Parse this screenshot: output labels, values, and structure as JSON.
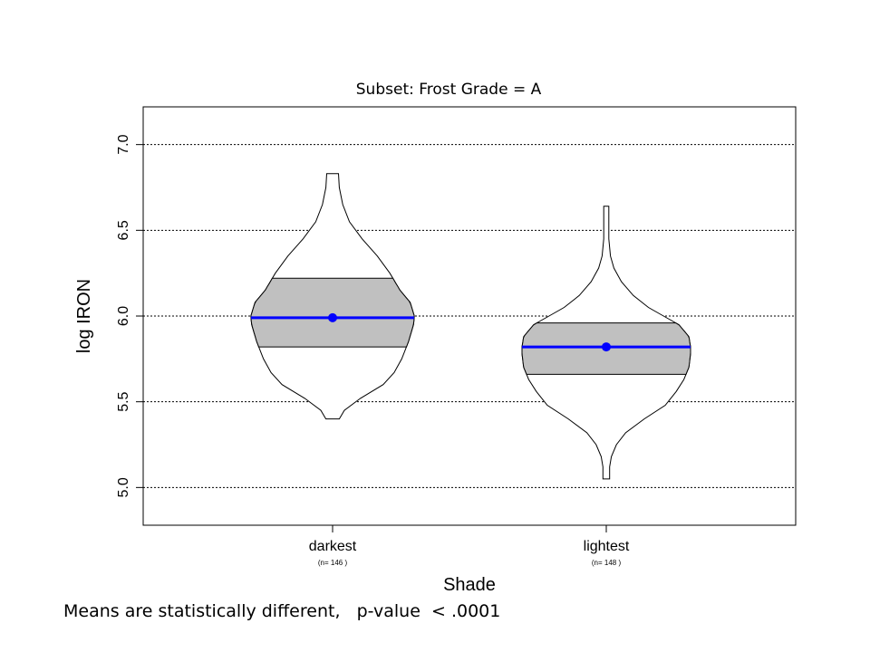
{
  "chart_data": {
    "type": "violin",
    "title": "Subset:  Frost Grade = A",
    "xlabel": "Shade",
    "ylabel": "log IRON",
    "ylim": [
      4.78,
      7.22
    ],
    "yticks": [
      "5.0",
      "5.5",
      "6.0",
      "6.5",
      "7.0"
    ],
    "grid": "horizontal dotted",
    "categories": [
      {
        "label": "darkest",
        "n_label": "(n= 146 )",
        "mean": 5.99,
        "box": [
          5.82,
          6.22
        ],
        "min": 5.4,
        "max": 6.83,
        "profile": [
          [
            5.4,
            0.08
          ],
          [
            5.45,
            0.14
          ],
          [
            5.52,
            0.33
          ],
          [
            5.6,
            0.6
          ],
          [
            5.67,
            0.73
          ],
          [
            5.75,
            0.82
          ],
          [
            5.85,
            0.9
          ],
          [
            5.95,
            0.96
          ],
          [
            6.0,
            0.97
          ],
          [
            6.08,
            0.92
          ],
          [
            6.15,
            0.8
          ],
          [
            6.25,
            0.68
          ],
          [
            6.35,
            0.53
          ],
          [
            6.45,
            0.35
          ],
          [
            6.55,
            0.2
          ],
          [
            6.65,
            0.12
          ],
          [
            6.75,
            0.08
          ],
          [
            6.83,
            0.07
          ]
        ]
      },
      {
        "label": "lightest",
        "n_label": "(n= 148 )",
        "mean": 5.82,
        "box": [
          5.66,
          5.96
        ],
        "min": 5.05,
        "max": 6.64,
        "profile": [
          [
            5.05,
            0.04
          ],
          [
            5.12,
            0.04
          ],
          [
            5.18,
            0.06
          ],
          [
            5.25,
            0.12
          ],
          [
            5.32,
            0.23
          ],
          [
            5.4,
            0.45
          ],
          [
            5.48,
            0.7
          ],
          [
            5.56,
            0.83
          ],
          [
            5.63,
            0.92
          ],
          [
            5.7,
            0.98
          ],
          [
            5.78,
            1.0
          ],
          [
            5.82,
            1.0
          ],
          [
            5.88,
            0.98
          ],
          [
            5.95,
            0.86
          ],
          [
            6.0,
            0.68
          ],
          [
            6.05,
            0.5
          ],
          [
            6.12,
            0.32
          ],
          [
            6.2,
            0.18
          ],
          [
            6.28,
            0.09
          ],
          [
            6.35,
            0.05
          ],
          [
            6.45,
            0.03
          ],
          [
            6.55,
            0.03
          ],
          [
            6.64,
            0.03
          ]
        ]
      }
    ]
  },
  "footnote": "Means are statistically different,   p-value  < .0001",
  "colors": {
    "box_fill": "#c0c0c0",
    "mean": "#0000ff",
    "outline": "#000000"
  }
}
